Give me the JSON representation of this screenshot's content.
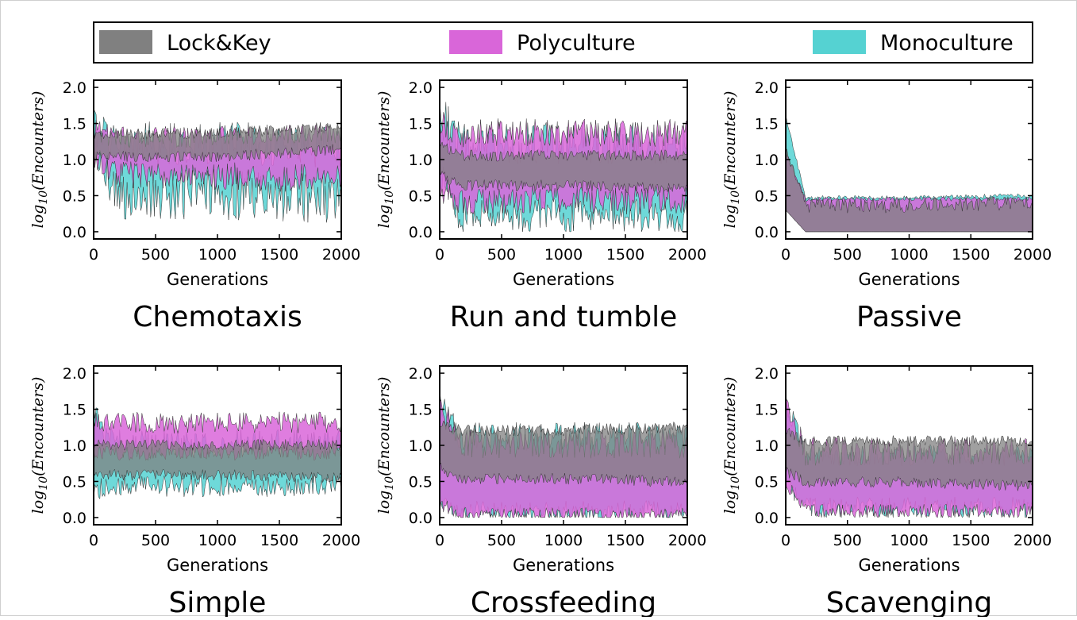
{
  "legend": [
    {
      "label": "Lock&Key",
      "color": "#808080"
    },
    {
      "label": "Polyculture",
      "color": "#d966d9"
    },
    {
      "label": "Monoculture",
      "color": "#55d2d2"
    }
  ],
  "axes_common": {
    "xlabel": "Generations",
    "ylabel_base": "log",
    "ylabel_sub": "10",
    "ylabel_arg": "(Encounters)",
    "xticks": [
      "0",
      "500",
      "1000",
      "1500",
      "2000"
    ],
    "yticks": [
      "0.0",
      "0.5",
      "1.0",
      "1.5",
      "2.0"
    ]
  },
  "chart_data": [
    {
      "type": "area",
      "title": "Chemotaxis",
      "xlabel": "Generations",
      "ylabel": "log10(Encounters)",
      "xlim": [
        0,
        2000
      ],
      "ylim": [
        -0.1,
        2.1
      ],
      "series": [
        {
          "name": "Monoculture",
          "start": [
            1.45,
            1.2
          ],
          "mid": [
            1.2,
            0.55
          ],
          "end": [
            1.15,
            0.5
          ],
          "noise": [
            0.3,
            0.35
          ]
        },
        {
          "name": "Polyculture",
          "start": [
            1.4,
            1.1
          ],
          "mid": [
            1.3,
            0.8
          ],
          "end": [
            1.35,
            0.75
          ],
          "noise": [
            0.15,
            0.2
          ]
        },
        {
          "name": "Lock&Key",
          "start": [
            1.3,
            1.05
          ],
          "mid": [
            1.35,
            1.05
          ],
          "end": [
            1.45,
            1.15
          ],
          "noise": [
            0.08,
            0.08
          ]
        }
      ]
    },
    {
      "type": "area",
      "title": "Run and tumble",
      "xlabel": "Generations",
      "ylabel": "log10(Encounters)",
      "xlim": [
        0,
        2000
      ],
      "ylim": [
        -0.1,
        2.1
      ],
      "series": [
        {
          "name": "Monoculture",
          "start": [
            1.6,
            0.8
          ],
          "mid": [
            1.2,
            0.25
          ],
          "end": [
            1.2,
            0.25
          ],
          "noise": [
            0.3,
            0.25
          ]
        },
        {
          "name": "Polyculture",
          "start": [
            1.5,
            0.6
          ],
          "mid": [
            1.35,
            0.45
          ],
          "end": [
            1.35,
            0.45
          ],
          "noise": [
            0.2,
            0.2
          ]
        },
        {
          "name": "Lock&Key",
          "start": [
            1.2,
            0.8
          ],
          "mid": [
            1.05,
            0.65
          ],
          "end": [
            1.05,
            0.6
          ],
          "noise": [
            0.08,
            0.08
          ]
        }
      ]
    },
    {
      "type": "area",
      "title": "Passive",
      "xlabel": "Generations",
      "ylabel": "log10(Encounters)",
      "xlim": [
        0,
        2000
      ],
      "ylim": [
        -0.1,
        2.1
      ],
      "series": [
        {
          "name": "Monoculture",
          "start": [
            1.6,
            0.3
          ],
          "mid": [
            0.47,
            0.0
          ],
          "end": [
            0.5,
            0.0
          ],
          "noise": [
            0.03,
            0.0
          ]
        },
        {
          "name": "Polyculture",
          "start": [
            1.1,
            0.3
          ],
          "mid": [
            0.45,
            0.0
          ],
          "end": [
            0.45,
            0.0
          ],
          "noise": [
            0.03,
            0.0
          ]
        },
        {
          "name": "Lock&Key",
          "start": [
            1.2,
            0.3
          ],
          "mid": [
            0.35,
            0.0
          ],
          "end": [
            0.4,
            0.0
          ],
          "noise": [
            0.1,
            0.0
          ]
        }
      ]
    },
    {
      "type": "area",
      "title": "Simple",
      "xlabel": "Generations",
      "ylabel": "log10(Encounters)",
      "xlim": [
        0,
        2000
      ],
      "ylim": [
        -0.1,
        2.1
      ],
      "series": [
        {
          "name": "Monoculture",
          "start": [
            1.4,
            0.4
          ],
          "mid": [
            1.0,
            0.45
          ],
          "end": [
            1.0,
            0.45
          ],
          "noise": [
            0.2,
            0.15
          ]
        },
        {
          "name": "Polyculture",
          "start": [
            1.35,
            0.9
          ],
          "mid": [
            1.3,
            0.9
          ],
          "end": [
            1.3,
            0.9
          ],
          "noise": [
            0.15,
            0.1
          ]
        },
        {
          "name": "Lock&Key",
          "start": [
            1.0,
            0.65
          ],
          "mid": [
            1.0,
            0.6
          ],
          "end": [
            1.0,
            0.55
          ],
          "noise": [
            0.08,
            0.08
          ]
        }
      ]
    },
    {
      "type": "area",
      "title": "Crossfeeding",
      "xlabel": "Generations",
      "ylabel": "log10(Encounters)",
      "xlim": [
        0,
        2000
      ],
      "ylim": [
        -0.1,
        2.1
      ],
      "series": [
        {
          "name": "Monoculture",
          "start": [
            1.6,
            0.3
          ],
          "mid": [
            1.1,
            0.1
          ],
          "end": [
            1.1,
            0.1
          ],
          "noise": [
            0.2,
            0.15
          ]
        },
        {
          "name": "Polyculture",
          "start": [
            1.55,
            0.2
          ],
          "mid": [
            1.0,
            0.05
          ],
          "end": [
            1.0,
            0.05
          ],
          "noise": [
            0.2,
            0.1
          ]
        },
        {
          "name": "Lock&Key",
          "start": [
            1.3,
            0.7
          ],
          "mid": [
            1.2,
            0.55
          ],
          "end": [
            1.25,
            0.5
          ],
          "noise": [
            0.08,
            0.08
          ]
        }
      ]
    },
    {
      "type": "area",
      "title": "Scavenging",
      "xlabel": "Generations",
      "ylabel": "log10(Encounters)",
      "xlim": [
        0,
        2000
      ],
      "ylim": [
        -0.1,
        2.1
      ],
      "series": [
        {
          "name": "Monoculture",
          "start": [
            1.6,
            0.5
          ],
          "mid": [
            0.85,
            0.15
          ],
          "end": [
            0.85,
            0.15
          ],
          "noise": [
            0.15,
            0.15
          ]
        },
        {
          "name": "Polyculture",
          "start": [
            1.55,
            0.5
          ],
          "mid": [
            0.9,
            0.1
          ],
          "end": [
            0.9,
            0.1
          ],
          "noise": [
            0.2,
            0.1
          ]
        },
        {
          "name": "Lock&Key",
          "start": [
            1.2,
            0.65
          ],
          "mid": [
            1.05,
            0.5
          ],
          "end": [
            1.05,
            0.45
          ],
          "noise": [
            0.08,
            0.08
          ]
        }
      ]
    }
  ]
}
